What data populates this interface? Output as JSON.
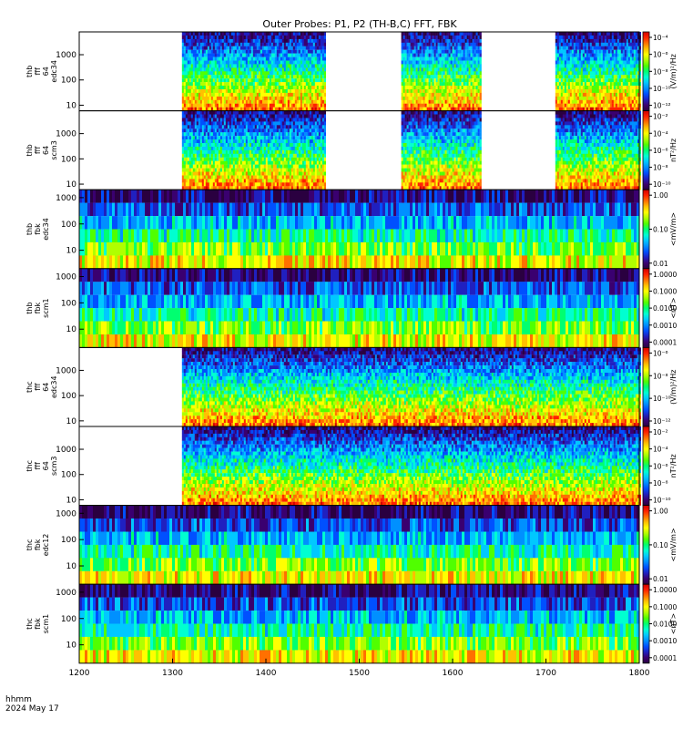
{
  "title": "Outer Probes: P1, P2 (TH-B,C) FFT, FBK",
  "footer": {
    "line1": "hhmm",
    "line2": "2024 May 17"
  },
  "colors": {
    "missing": "#ffffff",
    "palette": [
      "#2a0040",
      "#3a0070",
      "#2020c0",
      "#0050ff",
      "#0090ff",
      "#00c8ff",
      "#00ffd0",
      "#00ff70",
      "#50ff00",
      "#b0ff00",
      "#ffff00",
      "#ffc000",
      "#ff7000",
      "#ff2000",
      "#d00000"
    ]
  },
  "chart_data": {
    "type": "heatmap",
    "x_axis": {
      "range": [
        1200,
        1800
      ],
      "ticks": [
        1200,
        1300,
        1400,
        1500,
        1600,
        1700,
        1800
      ],
      "label": "hhmm"
    },
    "panels": [
      {
        "id": "thb_fft_edc34",
        "ylabel": [
          "thb",
          "fff",
          "64",
          "edc34"
        ],
        "yticks": [
          "1000",
          "100",
          "10"
        ],
        "ylim": [
          6,
          8000
        ],
        "colorbar": {
          "label": "(V/m)²/Hz",
          "ticks": [
            "10⁻⁴",
            "10⁻⁶",
            "10⁻⁸",
            "10⁻¹⁰",
            "10⁻¹²"
          ]
        },
        "data_intervals": [
          [
            1310,
            1463
          ],
          [
            1545,
            1630
          ],
          [
            1710,
            1800
          ]
        ]
      },
      {
        "id": "thb_fft_scm3",
        "ylabel": [
          "thb",
          "fff",
          "64",
          "scm3"
        ],
        "yticks": [
          "1000",
          "100",
          "10"
        ],
        "ylim": [
          6,
          8000
        ],
        "colorbar": {
          "label": "nT²/Hz",
          "ticks": [
            "10⁻²",
            "10⁻⁴",
            "10⁻⁶",
            "10⁻⁸",
            "10⁻¹⁰"
          ]
        },
        "data_intervals": [
          [
            1310,
            1463
          ],
          [
            1545,
            1630
          ],
          [
            1710,
            1800
          ]
        ]
      },
      {
        "id": "thb_fbk_edc34",
        "ylabel": [
          "thb",
          "fbk",
          "edc34"
        ],
        "yticks": [
          "1000",
          "100",
          "10"
        ],
        "ylim": [
          2,
          2000
        ],
        "colorbar": {
          "label": "<mV/m>",
          "ticks": [
            "1.00",
            "0.10",
            "0.01"
          ]
        },
        "data_intervals": [
          [
            1200,
            1800
          ]
        ]
      },
      {
        "id": "thb_fbk_scm1",
        "ylabel": [
          "thb",
          "fbk",
          "scm1"
        ],
        "yticks": [
          "1000",
          "100",
          "10"
        ],
        "ylim": [
          2,
          2000
        ],
        "colorbar": {
          "label": "<nT>",
          "ticks": [
            "1.0000",
            "0.1000",
            "0.0100",
            "0.0010",
            "0.0001"
          ]
        },
        "data_intervals": [
          [
            1200,
            1800
          ]
        ]
      },
      {
        "id": "thc_fft_edc34",
        "ylabel": [
          "thc",
          "fff",
          "64",
          "edc34"
        ],
        "yticks": [
          "1000",
          "100",
          "10"
        ],
        "ylim": [
          6,
          8000
        ],
        "colorbar": {
          "label": "(V/m)²/Hz",
          "ticks": [
            "10⁻⁶",
            "10⁻⁸",
            "10⁻¹⁰",
            "10⁻¹²"
          ]
        },
        "data_intervals": [
          [
            1310,
            1800
          ]
        ]
      },
      {
        "id": "thc_fft_scm3",
        "ylabel": [
          "thc",
          "fff",
          "64",
          "scm3"
        ],
        "yticks": [
          "1000",
          "100",
          "10"
        ],
        "ylim": [
          6,
          8000
        ],
        "colorbar": {
          "label": "nT²/Hz",
          "ticks": [
            "10⁻²",
            "10⁻⁴",
            "10⁻⁶",
            "10⁻⁸",
            "10⁻¹⁰"
          ]
        },
        "data_intervals": [
          [
            1310,
            1800
          ]
        ]
      },
      {
        "id": "thc_fbk_edc12",
        "ylabel": [
          "thc",
          "fbk",
          "edc12"
        ],
        "yticks": [
          "1000",
          "100",
          "10"
        ],
        "ylim": [
          2,
          2000
        ],
        "colorbar": {
          "label": "<mV/m>",
          "ticks": [
            "1.00",
            "0.10",
            "0.01"
          ]
        },
        "data_intervals": [
          [
            1200,
            1800
          ]
        ]
      },
      {
        "id": "thc_fbk_scm1",
        "ylabel": [
          "thc",
          "fbk",
          "scm1"
        ],
        "yticks": [
          "1000",
          "100",
          "10"
        ],
        "ylim": [
          2,
          2000
        ],
        "colorbar": {
          "label": "<nT>",
          "ticks": [
            "1.0000",
            "0.1000",
            "0.0100",
            "0.0010",
            "0.0001"
          ]
        },
        "data_intervals": [
          [
            1200,
            1800
          ]
        ]
      }
    ]
  }
}
